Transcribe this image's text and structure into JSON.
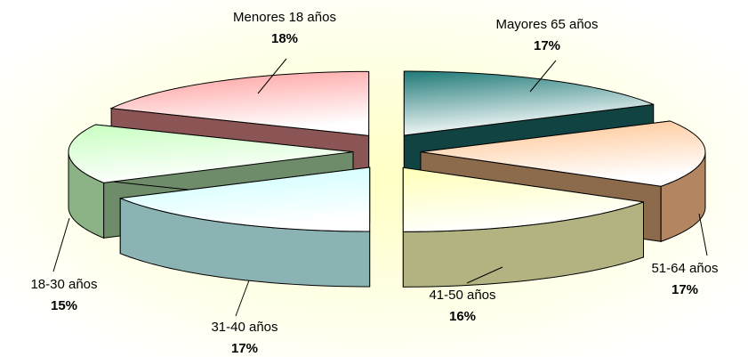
{
  "chart_data": {
    "type": "pie",
    "categories": [
      "Mayores 65 años",
      "51-64 años",
      "41-50 años",
      "31-40 años",
      "18-30 años",
      "Menores 18 años"
    ],
    "values": [
      17,
      17,
      16,
      17,
      15,
      18
    ],
    "value_labels": [
      "17%",
      "17%",
      "16%",
      "17%",
      "15%",
      "18%"
    ],
    "colors": [
      "#1f7a78",
      "#ffc08a",
      "#ffffb8",
      "#c8ffff",
      "#c8ffc0",
      "#ff9a9a"
    ]
  }
}
